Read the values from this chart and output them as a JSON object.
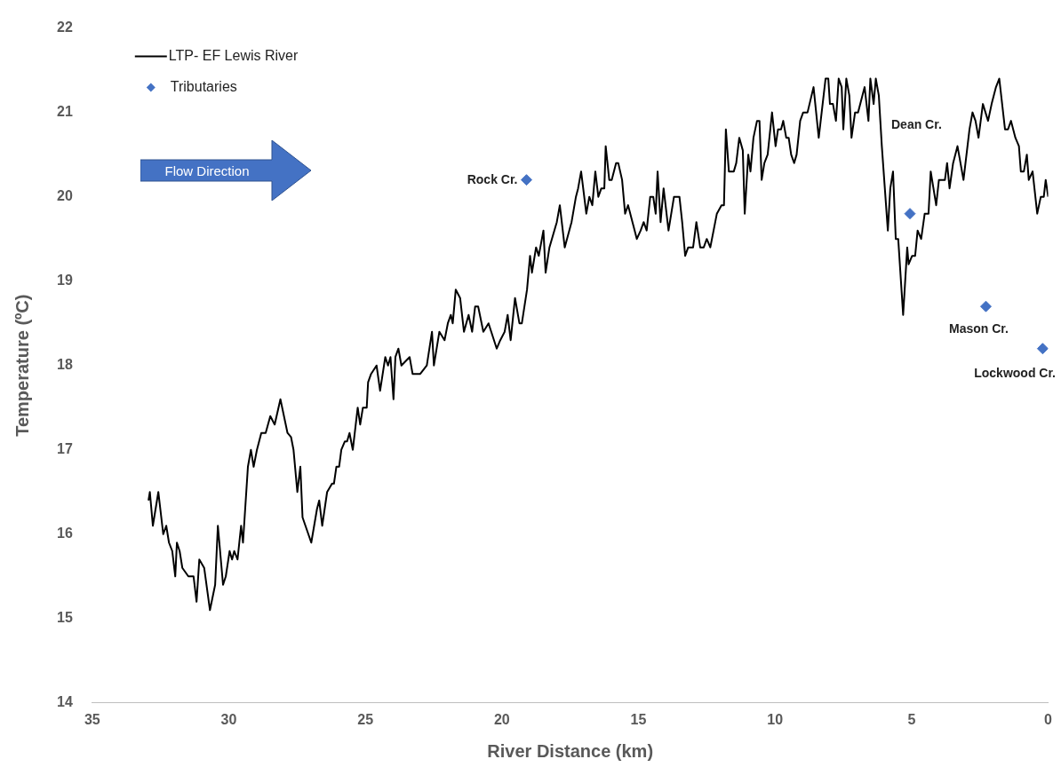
{
  "chart_data": {
    "type": "line",
    "xlabel": "River Distance (km)",
    "ylabel": "Temperature (ºC)",
    "xlim": [
      35,
      0
    ],
    "xticks": [
      35,
      30,
      25,
      20,
      15,
      10,
      5,
      0
    ],
    "ylim": [
      14,
      22
    ],
    "yticks": [
      14,
      15,
      16,
      17,
      18,
      19,
      20,
      21,
      22
    ],
    "grid": false,
    "legend": "top left",
    "series": [
      {
        "name": "LTP- EF Lewis River",
        "color": "#000000",
        "marker": "none",
        "line_style": "solid",
        "x": [
          32.94,
          32.89,
          32.78,
          32.58,
          32.4,
          32.29,
          32.19,
          32.07,
          31.96,
          31.9,
          31.8,
          31.7,
          31.48,
          31.29,
          31.18,
          31.08,
          30.9,
          30.69,
          30.5,
          30.4,
          30.21,
          30.11,
          29.97,
          29.88,
          29.8,
          29.68,
          29.55,
          29.48,
          29.3,
          29.19,
          29.09,
          28.97,
          28.81,
          28.65,
          28.48,
          28.32,
          28.11,
          27.85,
          27.72,
          27.63,
          27.49,
          27.38,
          27.3,
          26.98,
          26.77,
          26.69,
          26.58,
          26.4,
          26.22,
          26.15,
          26.06,
          25.96,
          25.88,
          25.75,
          25.67,
          25.58,
          25.46,
          25.28,
          25.19,
          25.09,
          24.95,
          24.9,
          24.79,
          24.59,
          24.46,
          24.27,
          24.17,
          24.08,
          23.97,
          23.9,
          23.79,
          23.68,
          23.38,
          23.27,
          22.99,
          22.75,
          22.56,
          22.49,
          22.29,
          22.1,
          21.98,
          21.87,
          21.8,
          21.69,
          21.53,
          21.39,
          21.22,
          21.09,
          20.98,
          20.87,
          20.68,
          20.49,
          20.19,
          20.06,
          19.9,
          19.79,
          19.68,
          19.52,
          19.36,
          19.27,
          19.08,
          18.97,
          18.9,
          18.75,
          18.65,
          18.48,
          18.4,
          18.26,
          17.99,
          17.88,
          17.7,
          17.45,
          17.29,
          17.21,
          17.1,
          16.91,
          16.8,
          16.69,
          16.58,
          16.47,
          16.36,
          16.25,
          16.2,
          16.07,
          15.98,
          15.82,
          15.74,
          15.6,
          15.49,
          15.38,
          15.22,
          15.06,
          14.92,
          14.81,
          14.7,
          14.57,
          14.46,
          14.37,
          14.3,
          14.19,
          14.08,
          13.9,
          13.7,
          13.5,
          13.4,
          13.29,
          13.18,
          13.0,
          12.88,
          12.74,
          12.61,
          12.5,
          12.37,
          12.13,
          11.96,
          11.87,
          11.8,
          11.69,
          11.51,
          11.42,
          11.31,
          11.18,
          11.11,
          10.98,
          10.9,
          10.79,
          10.66,
          10.57,
          10.49,
          10.39,
          10.27,
          10.11,
          9.98,
          9.89,
          9.78,
          9.7,
          9.59,
          9.5,
          9.41,
          9.3,
          9.21,
          9.08,
          8.97,
          8.81,
          8.59,
          8.4,
          8.15,
          8.05,
          7.99,
          7.88,
          7.77,
          7.67,
          7.56,
          7.5,
          7.39,
          7.28,
          7.2,
          7.07,
          6.96,
          6.72,
          6.58,
          6.51,
          6.39,
          6.31,
          6.2,
          6.09,
          5.98,
          5.87,
          5.78,
          5.68,
          5.58,
          5.49,
          5.31,
          5.16,
          5.11,
          4.98,
          4.87,
          4.78,
          4.65,
          4.52,
          4.38,
          4.3,
          4.1,
          4.0,
          3.78,
          3.7,
          3.61,
          3.48,
          3.32,
          3.1,
          2.88,
          2.77,
          2.66,
          2.55,
          2.39,
          2.2,
          2.07,
          1.91,
          1.79,
          1.58,
          1.47,
          1.36,
          1.2,
          1.07,
          1.0,
          0.89,
          0.78,
          0.71,
          0.57,
          0.4,
          0.27,
          0.16,
          0.09,
          0.0
        ],
        "values": [
          16.4,
          16.5,
          16.1,
          16.5,
          16.0,
          16.1,
          15.9,
          15.8,
          15.5,
          15.9,
          15.8,
          15.6,
          15.5,
          15.5,
          15.2,
          15.7,
          15.6,
          15.1,
          15.4,
          16.1,
          15.4,
          15.5,
          15.8,
          15.7,
          15.8,
          15.7,
          16.1,
          15.9,
          16.8,
          17.0,
          16.8,
          17.0,
          17.2,
          17.2,
          17.4,
          17.3,
          17.6,
          17.2,
          17.15,
          17.0,
          16.5,
          16.8,
          16.2,
          15.9,
          16.3,
          16.4,
          16.1,
          16.5,
          16.6,
          16.6,
          16.8,
          16.8,
          17.0,
          17.1,
          17.1,
          17.2,
          17.0,
          17.5,
          17.3,
          17.5,
          17.5,
          17.8,
          17.9,
          18.0,
          17.7,
          18.1,
          18.0,
          18.1,
          17.6,
          18.1,
          18.2,
          18.0,
          18.1,
          17.9,
          17.9,
          18.0,
          18.4,
          18.0,
          18.4,
          18.3,
          18.5,
          18.6,
          18.5,
          18.9,
          18.8,
          18.4,
          18.6,
          18.4,
          18.7,
          18.7,
          18.4,
          18.5,
          18.2,
          18.3,
          18.4,
          18.6,
          18.3,
          18.8,
          18.5,
          18.5,
          18.9,
          19.3,
          19.1,
          19.4,
          19.3,
          19.6,
          19.1,
          19.4,
          19.7,
          19.9,
          19.4,
          19.7,
          20.0,
          20.1,
          20.3,
          19.8,
          20.0,
          19.9,
          20.3,
          20.0,
          20.1,
          20.1,
          20.6,
          20.2,
          20.2,
          20.4,
          20.4,
          20.2,
          19.8,
          19.9,
          19.7,
          19.5,
          19.6,
          19.7,
          19.6,
          20.0,
          20.0,
          19.8,
          20.3,
          19.7,
          20.1,
          19.6,
          20.0,
          20.0,
          19.7,
          19.3,
          19.4,
          19.4,
          19.7,
          19.4,
          19.4,
          19.5,
          19.4,
          19.8,
          19.9,
          19.9,
          20.8,
          20.3,
          20.3,
          20.4,
          20.7,
          20.55,
          19.8,
          20.5,
          20.3,
          20.7,
          20.9,
          20.9,
          20.2,
          20.4,
          20.5,
          21.0,
          20.6,
          20.8,
          20.8,
          20.9,
          20.7,
          20.7,
          20.5,
          20.4,
          20.5,
          20.9,
          21.0,
          21.0,
          21.3,
          20.7,
          21.4,
          21.4,
          21.1,
          21.1,
          20.9,
          21.4,
          21.3,
          20.8,
          21.4,
          21.2,
          20.7,
          21.0,
          21.0,
          21.3,
          20.9,
          21.4,
          21.1,
          21.4,
          21.2,
          20.6,
          20.1,
          19.6,
          20.1,
          20.3,
          19.5,
          19.5,
          18.6,
          19.4,
          19.2,
          19.3,
          19.3,
          19.6,
          19.5,
          19.8,
          19.8,
          20.3,
          19.9,
          20.2,
          20.2,
          20.4,
          20.1,
          20.4,
          20.6,
          20.2,
          20.8,
          21.0,
          20.9,
          20.7,
          21.1,
          20.9,
          21.1,
          21.3,
          21.4,
          20.8,
          20.8,
          20.9,
          20.7,
          20.6,
          20.3,
          20.3,
          20.5,
          20.2,
          20.3,
          19.8,
          20.0,
          20.0,
          20.2,
          20.0
        ]
      },
      {
        "name": "Tributaries",
        "type": "scatter",
        "color": "#4472c4",
        "marker": "diamond",
        "x": [
          19.1,
          5.06,
          2.28,
          0.2
        ],
        "values": [
          20.2,
          19.8,
          18.7,
          18.2
        ]
      }
    ],
    "annotations": [
      {
        "text": "Rock Cr.",
        "x": 19.1,
        "y": 20.2
      },
      {
        "text": "Mason Cr.",
        "x": 2.28,
        "y": 18.7
      },
      {
        "text": "Lockwood Cr.",
        "x": 0.2,
        "y": 18.2
      },
      "Flow Direction",
      "Dean Cr."
    ]
  }
}
